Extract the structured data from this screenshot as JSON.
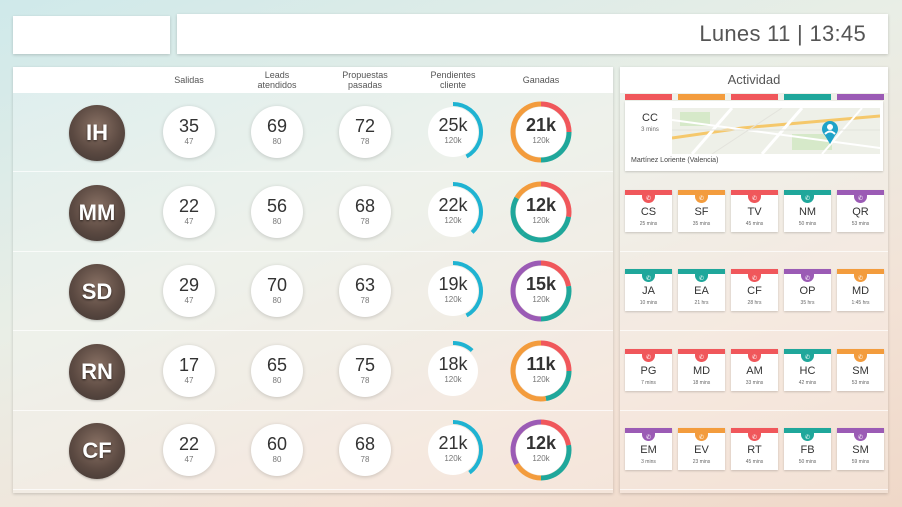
{
  "header": {
    "clock": "Lunes 11 | 13:45"
  },
  "table": {
    "columns": [
      "Salidas",
      "Leads\natendidos",
      "Propuestas\npasadas",
      "Pendientes\ncliente",
      "Ganadas"
    ],
    "rows": [
      {
        "initials": "IH",
        "salidas": {
          "v": "35",
          "s": "47"
        },
        "leads": {
          "v": "69",
          "s": "80"
        },
        "propuestas": {
          "v": "72",
          "s": "78"
        },
        "pendientes": {
          "v": "25k",
          "s": "120k",
          "progress": 0.42
        },
        "ganadas": {
          "v": "21k",
          "s": "120k"
        }
      },
      {
        "initials": "MM",
        "salidas": {
          "v": "22",
          "s": "47"
        },
        "leads": {
          "v": "56",
          "s": "80"
        },
        "propuestas": {
          "v": "68",
          "s": "78"
        },
        "pendientes": {
          "v": "22k",
          "s": "120k",
          "progress": 0.38
        },
        "ganadas": {
          "v": "12k",
          "s": "120k"
        }
      },
      {
        "initials": "SD",
        "salidas": {
          "v": "29",
          "s": "47"
        },
        "leads": {
          "v": "70",
          "s": "80"
        },
        "propuestas": {
          "v": "63",
          "s": "78"
        },
        "pendientes": {
          "v": "19k",
          "s": "120k",
          "progress": 0.42
        },
        "ganadas": {
          "v": "15k",
          "s": "120k"
        }
      },
      {
        "initials": "RN",
        "salidas": {
          "v": "17",
          "s": "47"
        },
        "leads": {
          "v": "65",
          "s": "80"
        },
        "propuestas": {
          "v": "75",
          "s": "78"
        },
        "pendientes": {
          "v": "18k",
          "s": "120k",
          "progress": 0.12
        },
        "ganadas": {
          "v": "11k",
          "s": "120k"
        }
      },
      {
        "initials": "CF",
        "salidas": {
          "v": "22",
          "s": "47"
        },
        "leads": {
          "v": "60",
          "s": "80"
        },
        "propuestas": {
          "v": "68",
          "s": "78"
        },
        "pendientes": {
          "v": "21k",
          "s": "120k",
          "progress": 0.4
        },
        "ganadas": {
          "v": "12k",
          "s": "120k"
        }
      }
    ]
  },
  "colors": {
    "red": "#f0575b",
    "orange": "#f39c3d",
    "teal": "#1fa79b",
    "purple": "#9b5bb5",
    "blue": "#1fb3d2"
  },
  "activity": {
    "title": "Actividad",
    "map": {
      "initials": "CC",
      "time": "3 mins",
      "location": "Martínez Loriente (Valencia)",
      "bars": [
        "red",
        "orange",
        "red",
        "teal",
        "purple"
      ]
    },
    "rows": [
      [
        {
          "ini": "CS",
          "time": "25 mins",
          "color": "red"
        },
        {
          "ini": "SF",
          "time": "35 mins",
          "color": "orange"
        },
        {
          "ini": "TV",
          "time": "45 mins",
          "color": "red"
        },
        {
          "ini": "NM",
          "time": "50 mins",
          "color": "teal"
        },
        {
          "ini": "QR",
          "time": "53 mins",
          "color": "purple"
        }
      ],
      [
        {
          "ini": "JA",
          "time": "10 mins",
          "color": "teal"
        },
        {
          "ini": "EA",
          "time": "21 hrs",
          "color": "teal"
        },
        {
          "ini": "CF",
          "time": "28 hrs",
          "color": "red"
        },
        {
          "ini": "OP",
          "time": "35 hrs",
          "color": "purple"
        },
        {
          "ini": "MD",
          "time": "1:45 hrs",
          "color": "orange"
        }
      ],
      [
        {
          "ini": "PG",
          "time": "7 mins",
          "color": "red"
        },
        {
          "ini": "MD",
          "time": "18 mins",
          "color": "red"
        },
        {
          "ini": "AM",
          "time": "33 mins",
          "color": "red"
        },
        {
          "ini": "HC",
          "time": "42 mins",
          "color": "teal"
        },
        {
          "ini": "SM",
          "time": "53 mins",
          "color": "orange"
        }
      ],
      [
        {
          "ini": "EM",
          "time": "3 mins",
          "color": "purple"
        },
        {
          "ini": "EV",
          "time": "23 mins",
          "color": "orange"
        },
        {
          "ini": "RT",
          "time": "45 mins",
          "color": "red"
        },
        {
          "ini": "FB",
          "time": "50 mins",
          "color": "teal"
        },
        {
          "ini": "SM",
          "time": "59 mins",
          "color": "purple"
        }
      ]
    ]
  }
}
